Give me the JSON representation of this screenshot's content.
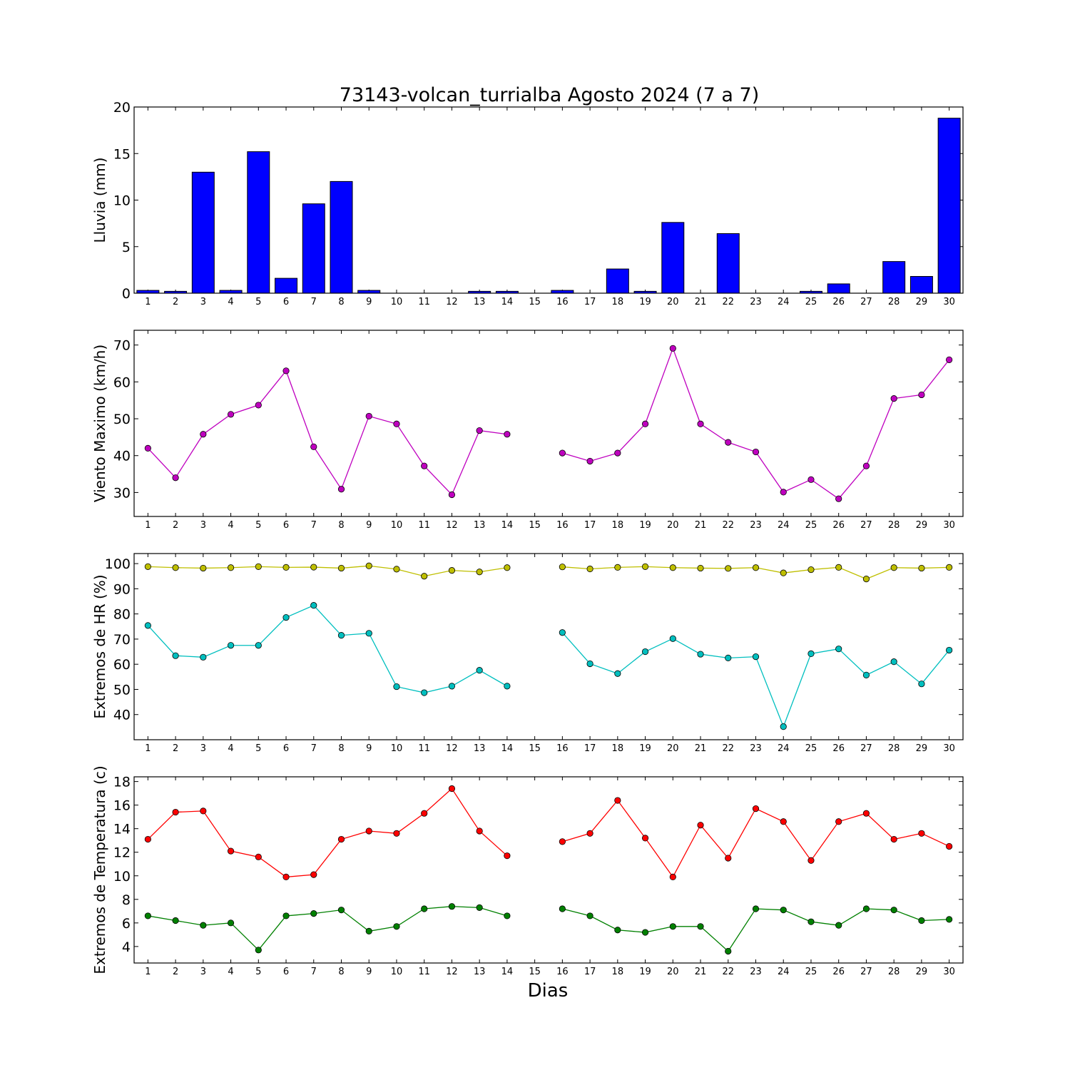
{
  "title": "73143-volcan_turrialba Agosto 2024  (7 a 7)",
  "xlabel": "Dias",
  "chart_data": [
    {
      "type": "bar",
      "ylabel": "Lluvia (mm)",
      "ylim": [
        0,
        20
      ],
      "yticks": [
        0,
        5,
        10,
        15,
        20
      ],
      "x": [
        1,
        2,
        3,
        4,
        5,
        6,
        7,
        8,
        9,
        10,
        11,
        12,
        13,
        14,
        15,
        16,
        17,
        18,
        19,
        20,
        21,
        22,
        23,
        24,
        25,
        26,
        27,
        28,
        29,
        30
      ],
      "color": "#0000ff",
      "values": [
        0.3,
        0.2,
        13.0,
        0.3,
        15.2,
        1.6,
        9.6,
        12.0,
        0.3,
        0,
        0,
        0,
        0.2,
        0.2,
        0,
        0.3,
        0,
        2.6,
        0.2,
        7.6,
        0,
        6.4,
        0,
        0,
        0.2,
        1.0,
        0,
        3.4,
        1.8,
        18.8
      ]
    },
    {
      "type": "line",
      "ylabel": "Viento Maximo (km/h)",
      "ylim": [
        23.5,
        74
      ],
      "yticks": [
        30,
        40,
        50,
        60,
        70
      ],
      "x": [
        1,
        2,
        3,
        4,
        5,
        6,
        7,
        8,
        9,
        10,
        11,
        12,
        13,
        14,
        15,
        16,
        17,
        18,
        19,
        20,
        21,
        22,
        23,
        24,
        25,
        26,
        27,
        28,
        29,
        30
      ],
      "series": [
        {
          "color": "#bf00bf",
          "values": [
            42.0,
            34.0,
            45.8,
            51.2,
            53.7,
            63.0,
            42.4,
            30.9,
            50.7,
            48.6,
            37.2,
            29.4,
            46.8,
            45.8,
            null,
            40.7,
            38.5,
            40.7,
            48.6,
            69.1,
            48.6,
            43.6,
            41.0,
            30.1,
            33.5,
            28.3,
            37.2,
            55.5,
            56.5,
            66.0
          ]
        }
      ]
    },
    {
      "type": "line",
      "ylabel": "Extremos de HR (%)",
      "ylim": [
        30,
        104
      ],
      "yticks": [
        40,
        50,
        60,
        70,
        80,
        90,
        100
      ],
      "x": [
        1,
        2,
        3,
        4,
        5,
        6,
        7,
        8,
        9,
        10,
        11,
        12,
        13,
        14,
        15,
        16,
        17,
        18,
        19,
        20,
        21,
        22,
        23,
        24,
        25,
        26,
        27,
        28,
        29,
        30
      ],
      "series": [
        {
          "color": "#bfbf00",
          "values": [
            98.8,
            98.4,
            98.2,
            98.4,
            98.8,
            98.5,
            98.6,
            98.2,
            99.1,
            97.8,
            95.0,
            97.3,
            96.7,
            98.4,
            null,
            98.7,
            97.9,
            98.5,
            98.8,
            98.4,
            98.2,
            98.1,
            98.4,
            96.3,
            97.6,
            98.5,
            93.9,
            98.4,
            98.2,
            98.5
          ]
        },
        {
          "color": "#00bfbf",
          "values": [
            75.4,
            63.4,
            62.8,
            67.5,
            67.5,
            78.6,
            83.4,
            71.5,
            72.3,
            51.1,
            48.7,
            51.3,
            57.6,
            51.3,
            null,
            72.6,
            60.2,
            56.3,
            65.0,
            70.2,
            64.0,
            62.5,
            63.0,
            35.2,
            64.2,
            66.1,
            55.7,
            61.0,
            52.2,
            65.6
          ]
        }
      ]
    },
    {
      "type": "line",
      "ylabel": "Extremos de Temperatura (c)",
      "ylim": [
        2.6,
        18.4
      ],
      "yticks": [
        4,
        6,
        8,
        10,
        12,
        14,
        16,
        18
      ],
      "x": [
        1,
        2,
        3,
        4,
        5,
        6,
        7,
        8,
        9,
        10,
        11,
        12,
        13,
        14,
        15,
        16,
        17,
        18,
        19,
        20,
        21,
        22,
        23,
        24,
        25,
        26,
        27,
        28,
        29,
        30
      ],
      "series": [
        {
          "color": "#ff0000",
          "values": [
            13.1,
            15.4,
            15.5,
            12.1,
            11.6,
            9.9,
            10.1,
            13.1,
            13.8,
            13.6,
            15.3,
            17.4,
            13.8,
            11.7,
            null,
            12.9,
            13.6,
            16.4,
            13.2,
            9.9,
            14.3,
            11.5,
            15.7,
            14.6,
            11.3,
            14.6,
            15.3,
            13.1,
            13.6,
            12.5
          ]
        },
        {
          "color": "#008000",
          "values": [
            6.6,
            6.2,
            5.8,
            6.0,
            3.7,
            6.6,
            6.8,
            7.1,
            5.3,
            5.7,
            7.2,
            7.4,
            7.3,
            6.6,
            null,
            7.2,
            6.6,
            5.4,
            5.2,
            5.7,
            5.7,
            3.6,
            7.2,
            7.1,
            6.1,
            5.8,
            7.2,
            7.1,
            6.2,
            6.3
          ]
        }
      ]
    }
  ]
}
